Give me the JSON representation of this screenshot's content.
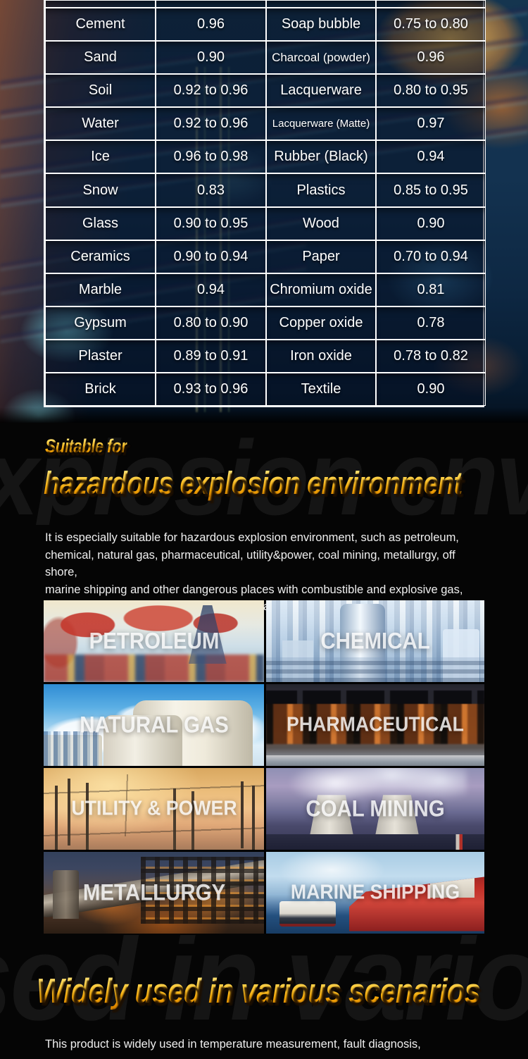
{
  "colors": {
    "page_background": "#050505",
    "accent_gold": "#f5a70a",
    "table_border": "#ffffff",
    "table_text": "#ffffff",
    "body_text": "#efefef",
    "watermark": "#151515"
  },
  "emissivity_table": {
    "rows": [
      {
        "m1": "Cement",
        "v1": "0.96",
        "m2": "Soap bubble",
        "v2": "0.75 to 0.80"
      },
      {
        "m1": "Sand",
        "v1": "0.90",
        "m2": "Charcoal (powder)",
        "v2": "0.96"
      },
      {
        "m1": "Soil",
        "v1": "0.92 to 0.96",
        "m2": "Lacquerware",
        "v2": "0.80 to 0.95"
      },
      {
        "m1": "Water",
        "v1": "0.92 to 0.96",
        "m2": "Lacquerware (Matte)",
        "v2": "0.97"
      },
      {
        "m1": "Ice",
        "v1": "0.96 to 0.98",
        "m2": "Rubber (Black)",
        "v2": "0.94"
      },
      {
        "m1": "Snow",
        "v1": "0.83",
        "m2": "Plastics",
        "v2": "0.85 to 0.95"
      },
      {
        "m1": "Glass",
        "v1": "0.90 to 0.95",
        "m2": "Wood",
        "v2": "0.90"
      },
      {
        "m1": "Ceramics",
        "v1": "0.90 to 0.94",
        "m2": "Paper",
        "v2": "0.70 to 0.94"
      },
      {
        "m1": "Marble",
        "v1": "0.94",
        "m2": "Chromium oxide",
        "v2": "0.81"
      },
      {
        "m1": "Gypsum",
        "v1": "0.80 to 0.90",
        "m2": "Copper oxide",
        "v2": "0.78"
      },
      {
        "m1": "Plaster",
        "v1": "0.89 to 0.91",
        "m2": "Iron oxide",
        "v2": "0.78 to 0.82"
      },
      {
        "m1": "Brick",
        "v1": "0.93 to 0.96",
        "m2": "Textile",
        "v2": "0.90"
      }
    ]
  },
  "section_hazardous": {
    "kicker": "Suitable for",
    "title": "hazardous explosion environment",
    "watermark": "explosion envi",
    "description_lines": [
      "It is especially suitable for hazardous explosion environment, such as petroleum,",
      "chemical, natural gas, pharmaceutical, utility&power, coal mining, metallurgy, off shore,",
      "marine shipping and other dangerous places with combustible and explosive gas,",
      "which is convenient for users to communicate with production and scheduling in time."
    ]
  },
  "scenarios": {
    "items": [
      {
        "label": "PETROLEUM"
      },
      {
        "label": "CHEMICAL"
      },
      {
        "label": "NATURAL GAS"
      },
      {
        "label": "PHARMACEUTICAL"
      },
      {
        "label": "UTILITY & POWER"
      },
      {
        "label": "COAL MINING"
      },
      {
        "label": "METALLURGY"
      },
      {
        "label": "MARINE SHIPPING"
      }
    ]
  },
  "section_scenarios": {
    "title": "Widely used in various scenarios",
    "watermark": "sed in various",
    "description": "This product is widely used in temperature measurement, fault diagnosis,"
  }
}
